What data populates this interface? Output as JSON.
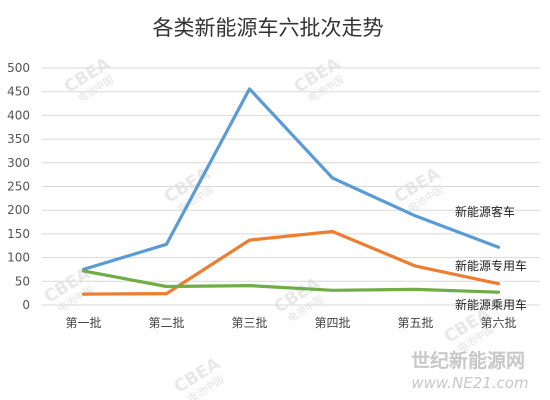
{
  "chart_data": {
    "type": "line",
    "title": "各类新能源车六批次走势",
    "categories": [
      "第一批",
      "第二批",
      "第三批",
      "第四批",
      "第五批",
      "第六批"
    ],
    "ylim": [
      0,
      500
    ],
    "yticks": [
      0,
      50,
      100,
      150,
      200,
      250,
      300,
      350,
      400,
      450,
      500
    ],
    "grid": true,
    "series": [
      {
        "name": "新能源客车",
        "color": "#5b9bd5",
        "values": [
          75,
          128,
          456,
          268,
          188,
          122
        ]
      },
      {
        "name": "新能源专用车",
        "color": "#ed7d31",
        "values": [
          23,
          24,
          137,
          155,
          82,
          45
        ]
      },
      {
        "name": "新能源乘用车",
        "color": "#70ad47",
        "values": [
          72,
          39,
          41,
          31,
          33,
          27
        ]
      }
    ]
  },
  "watermarks": {
    "logo_text": "CBEA",
    "sub_text": "电池中国",
    "corner_text": "世纪新能源网",
    "corner_url": "www.NE21.com"
  }
}
